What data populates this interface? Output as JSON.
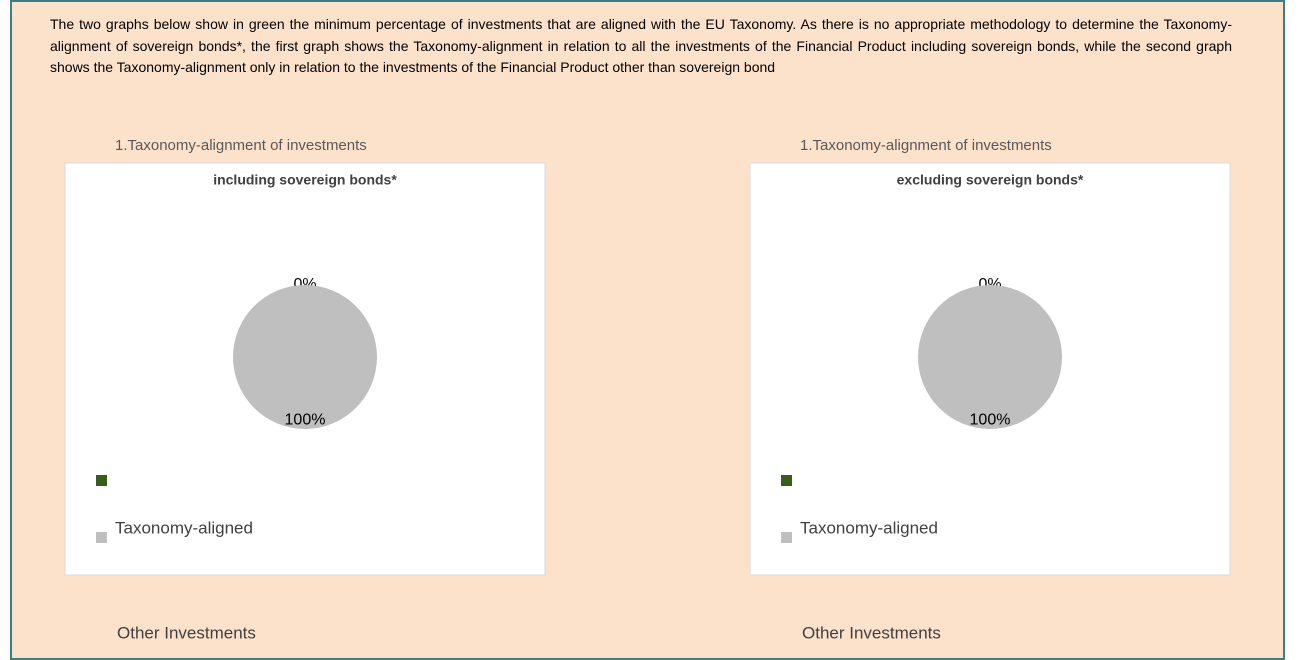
{
  "intro": "The two graphs below show in green the minimum percentage of investments that are aligned with the EU Taxonomy. As there is no appropriate methodology to determine the Taxonomy-alignment of sovereign bonds*, the first graph shows the Taxonomy-alignment in relation to all the investments of the Financial Product including sovereign bonds, while the second graph shows the Taxonomy-alignment only in relation to the investments of the Financial Product other than sovereign bond",
  "chart_data": [
    {
      "type": "pie",
      "heading": "1.Taxonomy-alignment of investments",
      "title": "including sovereign bonds*",
      "categories": [
        "Taxonomy-aligned",
        "Other Investments"
      ],
      "values": [
        0,
        100
      ],
      "value_labels": [
        "0%",
        "100%"
      ],
      "colors": [
        "#375f1b",
        "#bfbfbf"
      ],
      "legend": "bottom-left"
    },
    {
      "type": "pie",
      "heading": "1.Taxonomy-alignment of investments",
      "title": "excluding sovereign bonds*",
      "categories": [
        "Taxonomy-aligned",
        "Other Investments"
      ],
      "values": [
        0,
        100
      ],
      "value_labels": [
        "0%",
        "100%"
      ],
      "colors": [
        "#375f1b",
        "#bfbfbf"
      ],
      "legend": "bottom-left"
    }
  ]
}
